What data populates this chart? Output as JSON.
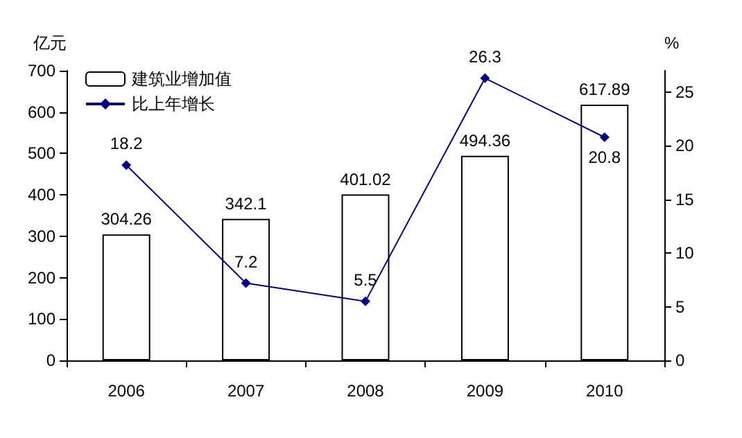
{
  "chart_data": {
    "type": "bar",
    "ylabel": "亿元",
    "y2label": "%",
    "categories": [
      "2006",
      "2007",
      "2008",
      "2009",
      "2010"
    ],
    "series": [
      {
        "name": "建筑业增加值",
        "color": "#ffffff",
        "values": [
          304.26,
          342.1,
          401.02,
          494.36,
          617.89
        ]
      },
      {
        "name": "比上年增长",
        "type": "line",
        "axis": "y2",
        "color": "#000080",
        "marker": "diamond",
        "values": [
          18.2,
          7.2,
          5.5,
          26.3,
          20.8
        ]
      }
    ],
    "ylim": [
      0,
      700
    ],
    "yticks": [
      0,
      100,
      200,
      300,
      400,
      500,
      600,
      700
    ],
    "y2lim": [
      0,
      27
    ],
    "y2ticks": [
      0,
      5,
      10,
      15,
      20,
      25
    ],
    "data_labels": true,
    "legend": "top left",
    "grid": false
  }
}
